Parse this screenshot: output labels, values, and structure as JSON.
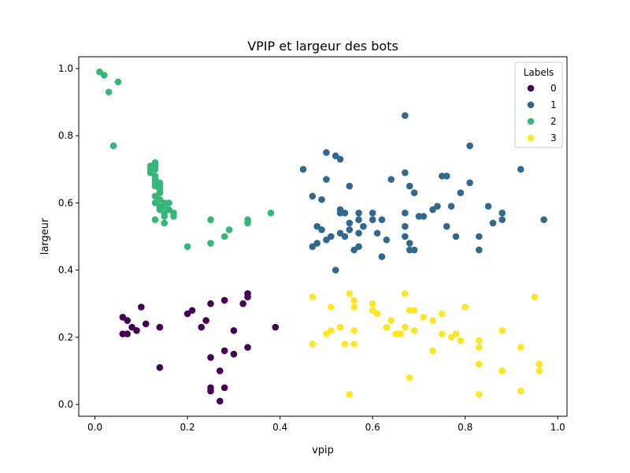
{
  "chart_data": {
    "type": "scatter",
    "title": "VPIP et largeur des bots",
    "xlabel": "vpip",
    "ylabel": "largeur",
    "xlim": [
      -0.035,
      1.02
    ],
    "ylim": [
      -0.035,
      1.035
    ],
    "xticks": [
      "0.0",
      "0.2",
      "0.4",
      "0.6",
      "0.8",
      "1.0"
    ],
    "yticks": [
      "0.0",
      "0.2",
      "0.4",
      "0.6",
      "0.8",
      "1.0"
    ],
    "grid": false,
    "legend": {
      "title": "Labels",
      "placement": "top-right"
    },
    "series": [
      {
        "name": "0",
        "color": "#440154",
        "points": [
          [
            0.06,
            0.26
          ],
          [
            0.07,
            0.25
          ],
          [
            0.06,
            0.21
          ],
          [
            0.07,
            0.21
          ],
          [
            0.08,
            0.23
          ],
          [
            0.09,
            0.22
          ],
          [
            0.1,
            0.29
          ],
          [
            0.11,
            0.24
          ],
          [
            0.14,
            0.23
          ],
          [
            0.14,
            0.11
          ],
          [
            0.2,
            0.27
          ],
          [
            0.21,
            0.28
          ],
          [
            0.23,
            0.23
          ],
          [
            0.24,
            0.25
          ],
          [
            0.25,
            0.3
          ],
          [
            0.25,
            0.14
          ],
          [
            0.25,
            0.05
          ],
          [
            0.25,
            0.04
          ],
          [
            0.27,
            0.1
          ],
          [
            0.27,
            0.01
          ],
          [
            0.28,
            0.31
          ],
          [
            0.28,
            0.16
          ],
          [
            0.28,
            0.05
          ],
          [
            0.3,
            0.22
          ],
          [
            0.3,
            0.15
          ],
          [
            0.32,
            0.3
          ],
          [
            0.33,
            0.33
          ],
          [
            0.33,
            0.32
          ],
          [
            0.33,
            0.17
          ],
          [
            0.39,
            0.23
          ]
        ]
      },
      {
        "name": "1",
        "color": "#31688e",
        "points": [
          [
            0.45,
            0.7
          ],
          [
            0.47,
            0.62
          ],
          [
            0.47,
            0.47
          ],
          [
            0.48,
            0.53
          ],
          [
            0.48,
            0.48
          ],
          [
            0.49,
            0.61
          ],
          [
            0.49,
            0.52
          ],
          [
            0.5,
            0.75
          ],
          [
            0.5,
            0.67
          ],
          [
            0.5,
            0.49
          ],
          [
            0.51,
            0.5
          ],
          [
            0.52,
            0.74
          ],
          [
            0.52,
            0.4
          ],
          [
            0.53,
            0.73
          ],
          [
            0.53,
            0.58
          ],
          [
            0.53,
            0.57
          ],
          [
            0.53,
            0.51
          ],
          [
            0.54,
            0.57
          ],
          [
            0.54,
            0.5
          ],
          [
            0.55,
            0.65
          ],
          [
            0.55,
            0.54
          ],
          [
            0.55,
            0.52
          ],
          [
            0.56,
            0.46
          ],
          [
            0.57,
            0.57
          ],
          [
            0.57,
            0.55
          ],
          [
            0.57,
            0.51
          ],
          [
            0.57,
            0.47
          ],
          [
            0.58,
            0.53
          ],
          [
            0.6,
            0.57
          ],
          [
            0.6,
            0.55
          ],
          [
            0.61,
            0.51
          ],
          [
            0.62,
            0.55
          ],
          [
            0.62,
            0.44
          ],
          [
            0.63,
            0.49
          ],
          [
            0.64,
            0.67
          ],
          [
            0.67,
            0.86
          ],
          [
            0.67,
            0.69
          ],
          [
            0.67,
            0.57
          ],
          [
            0.67,
            0.53
          ],
          [
            0.67,
            0.5
          ],
          [
            0.68,
            0.65
          ],
          [
            0.68,
            0.48
          ],
          [
            0.68,
            0.46
          ],
          [
            0.69,
            0.63
          ],
          [
            0.69,
            0.46
          ],
          [
            0.7,
            0.56
          ],
          [
            0.71,
            0.56
          ],
          [
            0.73,
            0.58
          ],
          [
            0.74,
            0.59
          ],
          [
            0.75,
            0.68
          ],
          [
            0.76,
            0.68
          ],
          [
            0.76,
            0.53
          ],
          [
            0.77,
            0.59
          ],
          [
            0.78,
            0.5
          ],
          [
            0.79,
            0.63
          ],
          [
            0.81,
            0.77
          ],
          [
            0.81,
            0.66
          ],
          [
            0.83,
            0.5
          ],
          [
            0.83,
            0.46
          ],
          [
            0.85,
            0.59
          ],
          [
            0.86,
            0.54
          ],
          [
            0.88,
            0.57
          ],
          [
            0.88,
            0.55
          ],
          [
            0.92,
            0.7
          ],
          [
            0.97,
            0.55
          ]
        ]
      },
      {
        "name": "2",
        "color": "#35b779",
        "points": [
          [
            0.01,
            0.99
          ],
          [
            0.02,
            0.98
          ],
          [
            0.03,
            0.93
          ],
          [
            0.04,
            0.77
          ],
          [
            0.05,
            0.96
          ],
          [
            0.12,
            0.71
          ],
          [
            0.12,
            0.7
          ],
          [
            0.12,
            0.69
          ],
          [
            0.13,
            0.72
          ],
          [
            0.13,
            0.71
          ],
          [
            0.13,
            0.7
          ],
          [
            0.13,
            0.68
          ],
          [
            0.13,
            0.67
          ],
          [
            0.13,
            0.66
          ],
          [
            0.13,
            0.65
          ],
          [
            0.13,
            0.62
          ],
          [
            0.13,
            0.6
          ],
          [
            0.13,
            0.55
          ],
          [
            0.14,
            0.66
          ],
          [
            0.14,
            0.65
          ],
          [
            0.14,
            0.64
          ],
          [
            0.14,
            0.63
          ],
          [
            0.14,
            0.61
          ],
          [
            0.14,
            0.59
          ],
          [
            0.14,
            0.58
          ],
          [
            0.15,
            0.6
          ],
          [
            0.15,
            0.59
          ],
          [
            0.15,
            0.57
          ],
          [
            0.15,
            0.56
          ],
          [
            0.15,
            0.54
          ],
          [
            0.16,
            0.6
          ],
          [
            0.16,
            0.58
          ],
          [
            0.17,
            0.57
          ],
          [
            0.17,
            0.56
          ],
          [
            0.2,
            0.47
          ],
          [
            0.25,
            0.55
          ],
          [
            0.25,
            0.48
          ],
          [
            0.28,
            0.5
          ],
          [
            0.29,
            0.52
          ],
          [
            0.33,
            0.55
          ],
          [
            0.33,
            0.54
          ],
          [
            0.38,
            0.57
          ]
        ]
      },
      {
        "name": "3",
        "color": "#fde725",
        "points": [
          [
            0.47,
            0.32
          ],
          [
            0.47,
            0.18
          ],
          [
            0.5,
            0.21
          ],
          [
            0.51,
            0.29
          ],
          [
            0.51,
            0.22
          ],
          [
            0.53,
            0.23
          ],
          [
            0.54,
            0.18
          ],
          [
            0.55,
            0.33
          ],
          [
            0.55,
            0.03
          ],
          [
            0.56,
            0.31
          ],
          [
            0.56,
            0.29
          ],
          [
            0.56,
            0.22
          ],
          [
            0.56,
            0.18
          ],
          [
            0.6,
            0.3
          ],
          [
            0.6,
            0.28
          ],
          [
            0.61,
            0.27
          ],
          [
            0.63,
            0.23
          ],
          [
            0.64,
            0.25
          ],
          [
            0.65,
            0.21
          ],
          [
            0.66,
            0.21
          ],
          [
            0.67,
            0.33
          ],
          [
            0.67,
            0.23
          ],
          [
            0.68,
            0.28
          ],
          [
            0.68,
            0.08
          ],
          [
            0.69,
            0.28
          ],
          [
            0.69,
            0.22
          ],
          [
            0.71,
            0.26
          ],
          [
            0.73,
            0.25
          ],
          [
            0.73,
            0.16
          ],
          [
            0.75,
            0.27
          ],
          [
            0.75,
            0.21
          ],
          [
            0.77,
            0.2
          ],
          [
            0.78,
            0.21
          ],
          [
            0.79,
            0.19
          ],
          [
            0.8,
            0.29
          ],
          [
            0.83,
            0.19
          ],
          [
            0.83,
            0.17
          ],
          [
            0.83,
            0.12
          ],
          [
            0.83,
            0.03
          ],
          [
            0.88,
            0.22
          ],
          [
            0.88,
            0.1
          ],
          [
            0.92,
            0.17
          ],
          [
            0.92,
            0.04
          ],
          [
            0.95,
            0.32
          ],
          [
            0.96,
            0.12
          ],
          [
            0.96,
            0.1
          ]
        ]
      }
    ]
  }
}
